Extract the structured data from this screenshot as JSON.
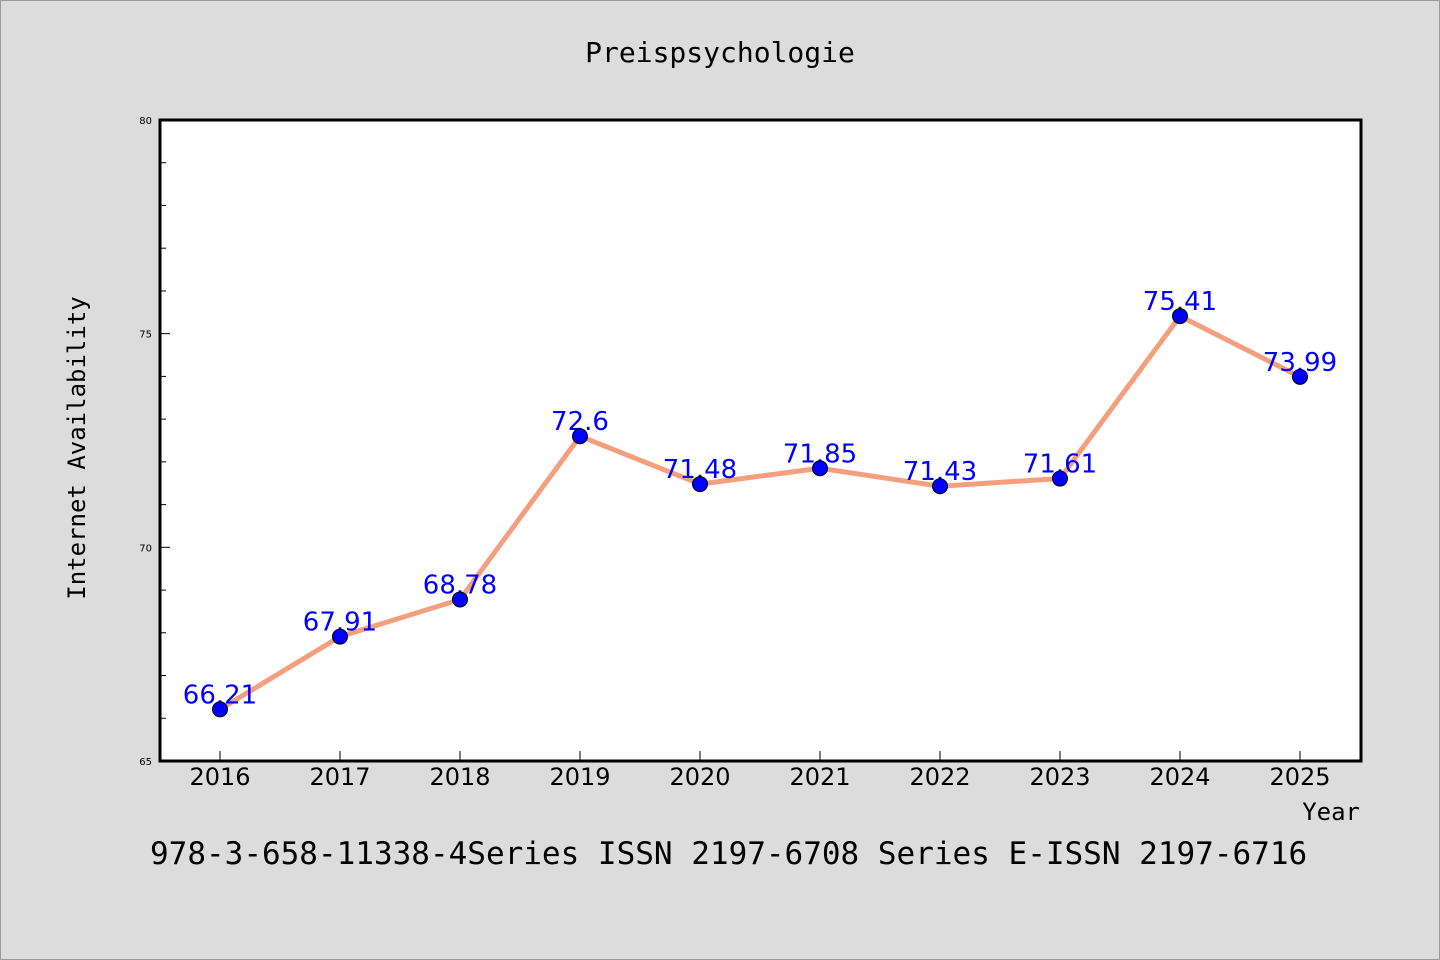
{
  "chart_data": {
    "type": "line",
    "title": "Preispsychologie",
    "xlabel": "Year",
    "ylabel": "Internet Availability",
    "categories": [
      "2016",
      "2017",
      "2018",
      "2019",
      "2020",
      "2021",
      "2022",
      "2023",
      "2024",
      "2025"
    ],
    "series": [
      {
        "values": [
          66.21,
          67.91,
          68.78,
          72.6,
          71.48,
          71.85,
          71.43,
          71.61,
          75.41,
          73.99
        ],
        "labels": [
          "66.21",
          "67.91",
          "68.78",
          "72.6",
          "71.48",
          "71.85",
          "71.43",
          "71.61",
          "75.41",
          "73.99"
        ],
        "line_color": "#f4a07e",
        "marker_color": "#0000ff"
      }
    ],
    "ylim": [
      65,
      80
    ],
    "yticks": [
      65,
      70,
      75,
      80
    ],
    "ytick_labels": [
      "65",
      "70",
      "75",
      "80"
    ],
    "grid": false,
    "legend": "none",
    "background": "#dcdcdc",
    "plot_background": "#ffffff"
  },
  "footer": {
    "text": "978-3-658-11338-4Series ISSN 2197-6708 Series E-ISSN 2197-6716"
  }
}
